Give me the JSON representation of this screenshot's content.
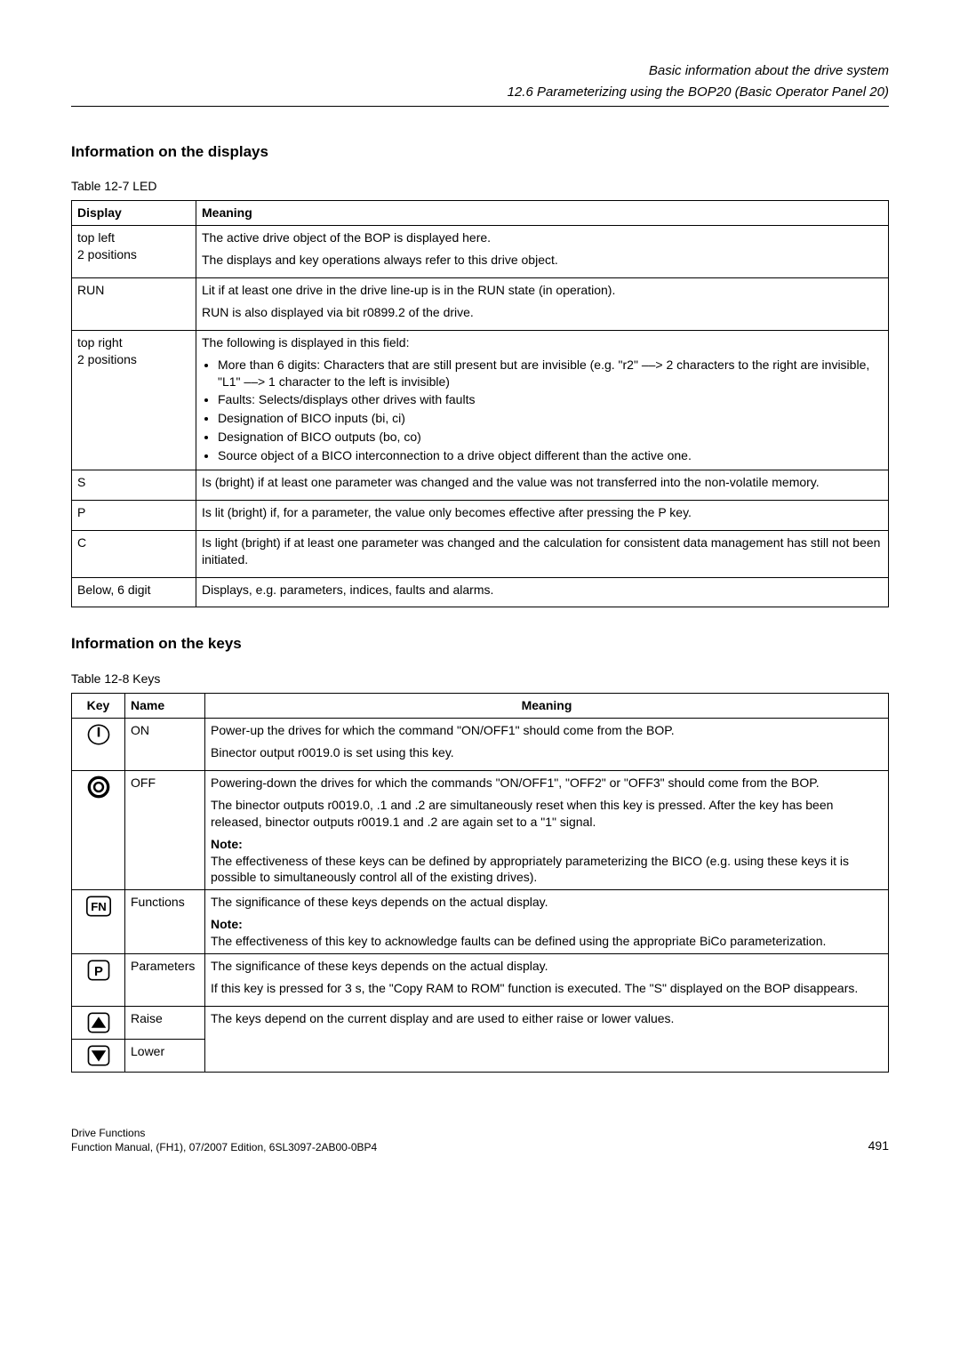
{
  "header": {
    "title": "Basic information about the drive system",
    "subtitle": "12.6 Parameterizing using the BOP20 (Basic Operator Panel 20)"
  },
  "section1": {
    "title": "Information on the displays",
    "caption": "Table 12-7    LED",
    "columns": [
      "Display",
      "Meaning"
    ],
    "col_widths": [
      "140px",
      "auto"
    ],
    "rows": [
      {
        "display": "top left\n2 positions",
        "meaning_parts": [
          "The active drive object of the BOP is displayed here.",
          "The displays and key operations always refer to this drive object."
        ]
      },
      {
        "display": "RUN",
        "meaning_parts": [
          "Lit if at least one drive in the drive line-up is in the RUN state (in operation).",
          "RUN is also displayed via bit r0899.2 of the drive."
        ]
      },
      {
        "display": "top right\n2 positions",
        "meaning_intro": "The following is displayed in this field:",
        "meaning_list": [
          "More than 6 digits: Characters that are still present but are invisible (e.g. \"r2\" ––> 2 characters to the right are invisible, \"L1\" ––> 1 character to the left is invisible)",
          "Faults: Selects/displays other drives with faults",
          "Designation of BICO inputs (bi, ci)",
          "Designation of BICO outputs (bo, co)",
          "Source object of a BICO interconnection to a drive object different than the active one."
        ]
      },
      {
        "display": "S",
        "meaning_parts": [
          "Is (bright) if at least one parameter was changed and the value was not transferred into the non-volatile memory."
        ]
      },
      {
        "display": "P",
        "meaning_parts": [
          "Is lit (bright) if, for a parameter, the value only becomes effective after pressing the P key."
        ]
      },
      {
        "display": "C",
        "meaning_parts": [
          "Is light (bright) if at least one parameter was changed and the calculation for consistent data management has still not been initiated."
        ]
      },
      {
        "display": "Below, 6 digit",
        "meaning_parts": [
          "Displays, e.g. parameters, indices, faults and alarms."
        ]
      }
    ]
  },
  "section2": {
    "title": "Information on the keys",
    "caption": "Table 12-8    Keys",
    "columns": [
      "Key",
      "Name",
      "Meaning"
    ],
    "rows": [
      {
        "icon": "on",
        "name": "ON",
        "meaning_parts": [
          "Power-up the drives for which the command \"ON/OFF1\" should come from the BOP.",
          "Binector output r0019.0 is set using this key."
        ]
      },
      {
        "icon": "off",
        "name": "OFF",
        "meaning_parts": [
          "Powering-down the drives for which the commands \"ON/OFF1\", \"OFF2\" or \"OFF3\" should come from the BOP.",
          "The binector outputs r0019.0, .1 and .2 are simultaneously reset when this key is pressed. After the key has been released, binector outputs r0019.1 and .2 are again set to a \"1\" signal."
        ],
        "note_label": "Note:",
        "note_text": "The effectiveness of these keys can be defined by appropriately parameterizing the BICO (e.g. using these keys it is possible to simultaneously control all of the existing drives)."
      },
      {
        "icon": "fn",
        "name": "Functions",
        "meaning_parts": [
          "The significance of these keys depends on the actual display."
        ],
        "note_label": "Note:",
        "note_text": "The effectiveness of this key to acknowledge faults can be defined using the appropriate BiCo parameterization."
      },
      {
        "icon": "p",
        "name": "Parameters",
        "meaning_parts": [
          "The significance of these keys depends on the actual display.",
          "If this key is pressed for 3 s, the \"Copy RAM to ROM\" function is executed. The \"S\" displayed on the BOP disappears."
        ]
      },
      {
        "icon": "up",
        "name": "Raise",
        "shared_meaning": "The keys depend on the current display and are used to either raise or lower values.",
        "rowspan_meaning": 2
      },
      {
        "icon": "down",
        "name": "Lower"
      }
    ]
  },
  "footer": {
    "left_line1": "Drive Functions",
    "left_line2": "Function Manual, (FH1), 07/2007 Edition, 6SL3097-2AB00-0BP4",
    "page": "491"
  },
  "icons": {
    "on": "on-icon",
    "off": "off-icon",
    "fn": "fn-icon",
    "p": "p-icon",
    "up": "up-icon",
    "down": "down-icon"
  }
}
